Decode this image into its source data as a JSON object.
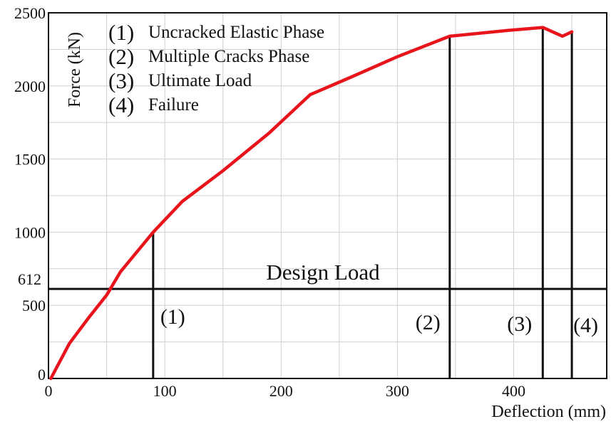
{
  "chart_data": {
    "type": "line",
    "title": "",
    "xlabel": "Deflection (mm)",
    "ylabel": "Force (kN)",
    "xlim": [
      0,
      480
    ],
    "ylim": [
      0,
      2500
    ],
    "x_ticks": [
      0,
      100,
      200,
      300,
      400
    ],
    "y_ticks": [
      0,
      500,
      1000,
      1500,
      2000,
      2500
    ],
    "x_tick_labels": [
      "0",
      "100",
      "200",
      "300",
      "400"
    ],
    "y_tick_labels": [
      "0",
      "500",
      "1000",
      "1500",
      "2000",
      "2500"
    ],
    "grid": true,
    "series": [
      {
        "color": "#e8141c",
        "x": [
          2,
          18,
          35,
          50,
          62,
          90,
          115,
          150,
          190,
          225,
          260,
          300,
          345,
          395,
          425,
          442,
          450
        ],
        "y": [
          0,
          240,
          420,
          570,
          730,
          1000,
          1210,
          1420,
          1680,
          1940,
          2060,
          2200,
          2340,
          2380,
          2400,
          2340,
          2370
        ]
      }
    ],
    "reference_lines": [
      {
        "type": "horizontal",
        "y": 612,
        "label": "612",
        "caption": "Design Load"
      },
      {
        "type": "vertical",
        "x": 90,
        "y_top": 1000,
        "marker": "(1)"
      },
      {
        "type": "vertical",
        "x": 345,
        "y_top": 2340,
        "marker": "(2)"
      },
      {
        "type": "vertical",
        "x": 425,
        "y_top": 2400,
        "marker": "(3)"
      },
      {
        "type": "vertical",
        "x": 450,
        "y_top": 2370,
        "marker": "(4)"
      }
    ],
    "legend_position": "top-left",
    "legend": [
      {
        "num": "(1)",
        "text": "Uncracked Elastic Phase"
      },
      {
        "num": "(2)",
        "text": "Multiple Cracks Phase"
      },
      {
        "num": "(3)",
        "text": "Ultimate Load"
      },
      {
        "num": "(4)",
        "text": "Failure"
      }
    ]
  }
}
